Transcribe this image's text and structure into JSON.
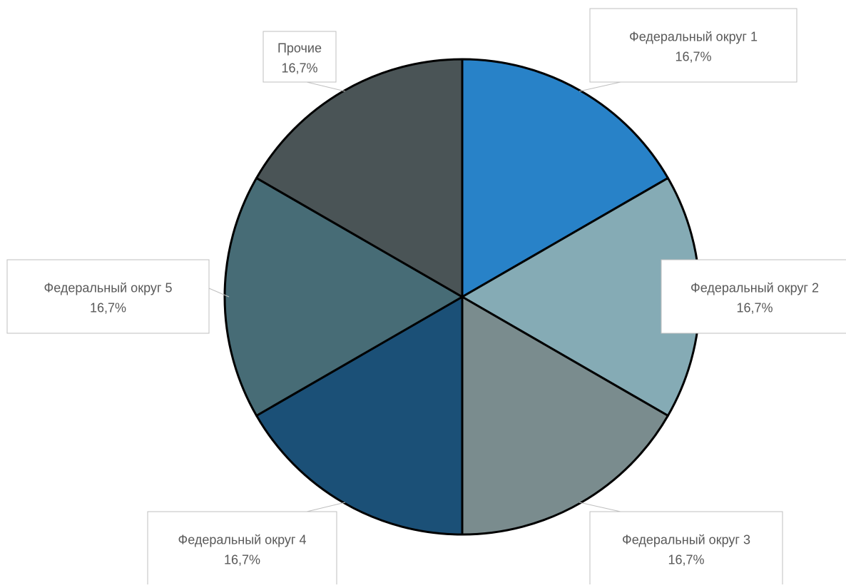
{
  "chart_data": {
    "type": "pie",
    "title": "",
    "start_angle_deg": 0,
    "direction": "clockwise",
    "legend": "none",
    "slices": [
      {
        "name": "Федеральный округ 1",
        "value": 16.7,
        "label": "16,7%",
        "color": "#2882c8"
      },
      {
        "name": "Федеральный округ 2",
        "value": 16.7,
        "label": "16,7%",
        "color": "#85abb5"
      },
      {
        "name": "Федеральный округ 3",
        "value": 16.7,
        "label": "16,7%",
        "color": "#7a8c8e"
      },
      {
        "name": "Федеральный округ 4",
        "value": 16.7,
        "label": "16,7%",
        "color": "#1b5077"
      },
      {
        "name": "Федеральный округ 5",
        "value": 16.7,
        "label": "16,7%",
        "color": "#476c76"
      },
      {
        "name": "Прочие",
        "value": 16.7,
        "label": "16,7%",
        "color": "#4a5456"
      }
    ]
  }
}
